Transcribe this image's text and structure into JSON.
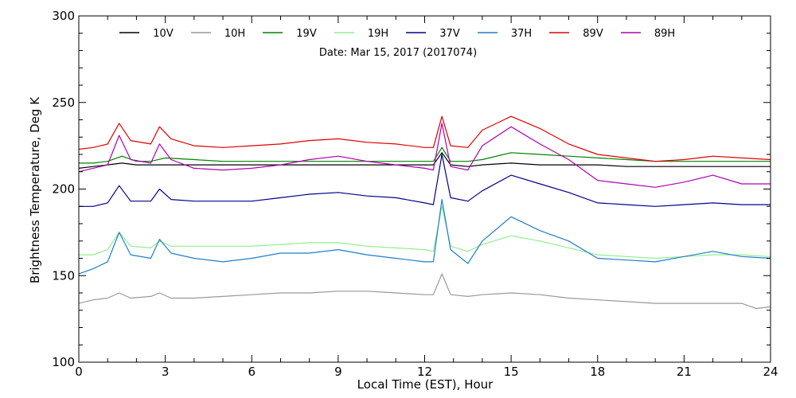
{
  "chart_data": {
    "type": "line",
    "title": "",
    "annotation": "Date: Mar 15, 2017 (2017074)",
    "xlabel": "Local Time (EST), Hour",
    "ylabel": "Brightness Temperature, Deg K",
    "xlim": [
      0,
      24
    ],
    "ylim": [
      100,
      300
    ],
    "xticks": [
      0,
      3,
      6,
      9,
      12,
      15,
      18,
      21,
      24
    ],
    "yticks": [
      100,
      150,
      200,
      250,
      300
    ],
    "grid": false,
    "legend_position": "top",
    "series": [
      {
        "name": "10V",
        "color": "#000000",
        "points": [
          [
            0,
            212
          ],
          [
            0.5,
            213
          ],
          [
            1,
            214
          ],
          [
            1.5,
            215
          ],
          [
            2,
            214
          ],
          [
            2.5,
            214
          ],
          [
            3,
            214
          ],
          [
            4,
            214
          ],
          [
            5,
            214
          ],
          [
            6,
            214
          ],
          [
            7,
            214
          ],
          [
            8,
            214
          ],
          [
            9,
            214
          ],
          [
            10,
            214
          ],
          [
            11,
            214
          ],
          [
            12,
            214
          ],
          [
            12.3,
            214
          ],
          [
            12.6,
            221
          ],
          [
            12.9,
            214
          ],
          [
            13.5,
            213
          ],
          [
            14,
            214
          ],
          [
            15,
            215
          ],
          [
            16,
            214
          ],
          [
            17,
            214
          ],
          [
            18,
            214
          ],
          [
            19,
            213
          ],
          [
            20,
            213
          ],
          [
            21,
            213
          ],
          [
            22,
            213
          ],
          [
            23,
            213
          ],
          [
            24,
            213
          ]
        ]
      },
      {
        "name": "10H",
        "color": "#999999",
        "points": [
          [
            0,
            134
          ],
          [
            0.5,
            136
          ],
          [
            1,
            137
          ],
          [
            1.4,
            140
          ],
          [
            1.8,
            137
          ],
          [
            2.5,
            138
          ],
          [
            2.8,
            140
          ],
          [
            3.2,
            137
          ],
          [
            4,
            137
          ],
          [
            5,
            138
          ],
          [
            6,
            139
          ],
          [
            7,
            140
          ],
          [
            8,
            140
          ],
          [
            9,
            141
          ],
          [
            10,
            141
          ],
          [
            11,
            140
          ],
          [
            12,
            139
          ],
          [
            12.3,
            139
          ],
          [
            12.6,
            151
          ],
          [
            12.9,
            139
          ],
          [
            13.5,
            138
          ],
          [
            14,
            139
          ],
          [
            15,
            140
          ],
          [
            16,
            139
          ],
          [
            17,
            137
          ],
          [
            18,
            136
          ],
          [
            19,
            135
          ],
          [
            20,
            134
          ],
          [
            21,
            134
          ],
          [
            22,
            134
          ],
          [
            23,
            134
          ],
          [
            23.5,
            131
          ],
          [
            24,
            132
          ]
        ]
      },
      {
        "name": "19V",
        "color": "#008000",
        "points": [
          [
            0,
            215
          ],
          [
            0.5,
            215
          ],
          [
            1,
            216
          ],
          [
            1.5,
            219
          ],
          [
            2,
            216
          ],
          [
            2.5,
            216
          ],
          [
            3,
            218
          ],
          [
            4,
            217
          ],
          [
            5,
            216
          ],
          [
            6,
            216
          ],
          [
            7,
            216
          ],
          [
            8,
            216
          ],
          [
            9,
            216
          ],
          [
            10,
            216
          ],
          [
            11,
            216
          ],
          [
            12,
            216
          ],
          [
            12.3,
            216
          ],
          [
            12.6,
            224
          ],
          [
            12.9,
            216
          ],
          [
            13.5,
            216
          ],
          [
            14,
            217
          ],
          [
            15,
            221
          ],
          [
            16,
            220
          ],
          [
            17,
            219
          ],
          [
            18,
            218
          ],
          [
            19,
            217
          ],
          [
            20,
            216
          ],
          [
            21,
            216
          ],
          [
            22,
            216
          ],
          [
            23,
            216
          ],
          [
            24,
            216
          ]
        ]
      },
      {
        "name": "19H",
        "color": "#90ee90",
        "points": [
          [
            0,
            162
          ],
          [
            0.5,
            162
          ],
          [
            1,
            165
          ],
          [
            1.4,
            175
          ],
          [
            1.8,
            167
          ],
          [
            2.5,
            166
          ],
          [
            2.8,
            170
          ],
          [
            3.2,
            167
          ],
          [
            4,
            167
          ],
          [
            5,
            167
          ],
          [
            6,
            167
          ],
          [
            7,
            168
          ],
          [
            8,
            169
          ],
          [
            9,
            169
          ],
          [
            10,
            167
          ],
          [
            11,
            166
          ],
          [
            12,
            165
          ],
          [
            12.3,
            164
          ],
          [
            12.6,
            190
          ],
          [
            12.9,
            167
          ],
          [
            13.5,
            164
          ],
          [
            14,
            168
          ],
          [
            15,
            173
          ],
          [
            16,
            170
          ],
          [
            17,
            166
          ],
          [
            18,
            162
          ],
          [
            19,
            161
          ],
          [
            20,
            160
          ],
          [
            21,
            161
          ],
          [
            22,
            162
          ],
          [
            23,
            162
          ],
          [
            24,
            161
          ]
        ]
      },
      {
        "name": "37V",
        "color": "#00008b",
        "points": [
          [
            0,
            190
          ],
          [
            0.5,
            190
          ],
          [
            1,
            192
          ],
          [
            1.4,
            202
          ],
          [
            1.8,
            193
          ],
          [
            2.5,
            193
          ],
          [
            2.8,
            200
          ],
          [
            3.2,
            194
          ],
          [
            4,
            193
          ],
          [
            5,
            193
          ],
          [
            6,
            193
          ],
          [
            7,
            195
          ],
          [
            8,
            197
          ],
          [
            9,
            198
          ],
          [
            10,
            196
          ],
          [
            11,
            195
          ],
          [
            12,
            192
          ],
          [
            12.3,
            191
          ],
          [
            12.6,
            220
          ],
          [
            12.9,
            195
          ],
          [
            13.5,
            193
          ],
          [
            14,
            199
          ],
          [
            15,
            208
          ],
          [
            16,
            203
          ],
          [
            17,
            198
          ],
          [
            18,
            192
          ],
          [
            19,
            191
          ],
          [
            20,
            190
          ],
          [
            21,
            191
          ],
          [
            22,
            192
          ],
          [
            23,
            191
          ],
          [
            24,
            191
          ]
        ]
      },
      {
        "name": "37H",
        "color": "#1e7fc8",
        "points": [
          [
            0,
            151
          ],
          [
            0.5,
            154
          ],
          [
            1,
            158
          ],
          [
            1.4,
            175
          ],
          [
            1.8,
            162
          ],
          [
            2.5,
            160
          ],
          [
            2.8,
            171
          ],
          [
            3.2,
            163
          ],
          [
            4,
            160
          ],
          [
            5,
            158
          ],
          [
            6,
            160
          ],
          [
            7,
            163
          ],
          [
            8,
            163
          ],
          [
            9,
            165
          ],
          [
            10,
            162
          ],
          [
            11,
            160
          ],
          [
            12,
            158
          ],
          [
            12.3,
            158
          ],
          [
            12.6,
            194
          ],
          [
            12.9,
            165
          ],
          [
            13.5,
            157
          ],
          [
            14,
            170
          ],
          [
            15,
            184
          ],
          [
            16,
            176
          ],
          [
            17,
            170
          ],
          [
            18,
            160
          ],
          [
            19,
            159
          ],
          [
            20,
            158
          ],
          [
            21,
            161
          ],
          [
            22,
            164
          ],
          [
            23,
            161
          ],
          [
            24,
            160
          ]
        ]
      },
      {
        "name": "89V",
        "color": "#e00000",
        "points": [
          [
            0,
            223
          ],
          [
            0.5,
            224
          ],
          [
            1,
            226
          ],
          [
            1.4,
            238
          ],
          [
            1.8,
            228
          ],
          [
            2.5,
            226
          ],
          [
            2.8,
            236
          ],
          [
            3.2,
            229
          ],
          [
            4,
            225
          ],
          [
            5,
            224
          ],
          [
            6,
            225
          ],
          [
            7,
            226
          ],
          [
            8,
            228
          ],
          [
            9,
            229
          ],
          [
            10,
            227
          ],
          [
            11,
            226
          ],
          [
            12,
            224
          ],
          [
            12.3,
            224
          ],
          [
            12.6,
            242
          ],
          [
            12.9,
            225
          ],
          [
            13.5,
            224
          ],
          [
            14,
            234
          ],
          [
            15,
            242
          ],
          [
            16,
            235
          ],
          [
            17,
            226
          ],
          [
            18,
            220
          ],
          [
            19,
            218
          ],
          [
            20,
            216
          ],
          [
            21,
            217
          ],
          [
            22,
            219
          ],
          [
            23,
            218
          ],
          [
            24,
            217
          ]
        ]
      },
      {
        "name": "89H",
        "color": "#b000b0",
        "points": [
          [
            0,
            210
          ],
          [
            0.5,
            212
          ],
          [
            1,
            214
          ],
          [
            1.4,
            231
          ],
          [
            1.8,
            217
          ],
          [
            2.5,
            215
          ],
          [
            2.8,
            226
          ],
          [
            3.2,
            217
          ],
          [
            4,
            212
          ],
          [
            5,
            211
          ],
          [
            6,
            212
          ],
          [
            7,
            214
          ],
          [
            8,
            217
          ],
          [
            9,
            219
          ],
          [
            10,
            216
          ],
          [
            11,
            214
          ],
          [
            12,
            212
          ],
          [
            12.3,
            211
          ],
          [
            12.6,
            238
          ],
          [
            12.9,
            213
          ],
          [
            13.5,
            211
          ],
          [
            14,
            225
          ],
          [
            15,
            236
          ],
          [
            16,
            226
          ],
          [
            17,
            217
          ],
          [
            18,
            205
          ],
          [
            19,
            203
          ],
          [
            20,
            201
          ],
          [
            21,
            204
          ],
          [
            22,
            208
          ],
          [
            23,
            203
          ],
          [
            24,
            203
          ]
        ]
      }
    ]
  }
}
